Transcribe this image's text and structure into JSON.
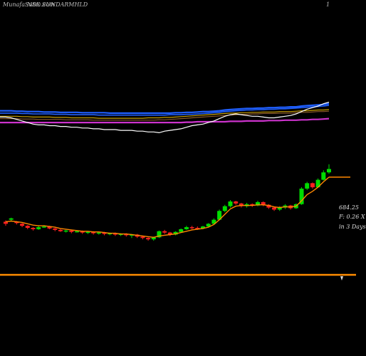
{
  "header": {
    "left_label": "MunafaSutra.com",
    "symbol_text": "NSE SUNDARMHLD",
    "page_marker": "1"
  },
  "side_labels": {
    "price": "684.25",
    "change": "F: 0.26  X",
    "period": "in 3 Days"
  },
  "colors": {
    "background": "#000000",
    "up_candle": "#00dd00",
    "down_candle": "#ff2020",
    "ema_price": "#ff8800",
    "ma_blue": "#1f5fff",
    "ma_purple": "#cc33cc",
    "ma_white": "#ffffff",
    "ma_gold": "#c8a000",
    "baseline": "#ff8c00"
  },
  "chart_data": {
    "type": "candlestick",
    "title": "",
    "x_count": 60,
    "candles": [
      {
        "o": 0.9,
        "c": 0.6,
        "h": 1.1,
        "l": 0.3
      },
      {
        "o": 1.2,
        "c": 1.4,
        "h": 1.5,
        "l": 1.0
      },
      {
        "o": 0.9,
        "c": 0.7,
        "h": 1.0,
        "l": 0.5
      },
      {
        "o": 0.6,
        "c": 0.3,
        "h": 0.7,
        "l": 0.1
      },
      {
        "o": 0.3,
        "c": 0.0,
        "h": 0.4,
        "l": -0.2
      },
      {
        "o": 0.0,
        "c": -0.2,
        "h": 0.1,
        "l": -0.4
      },
      {
        "o": -0.2,
        "c": 0.1,
        "h": 0.3,
        "l": -0.3
      },
      {
        "o": 0.1,
        "c": 0.2,
        "h": 0.4,
        "l": 0.0
      },
      {
        "o": 0.2,
        "c": -0.1,
        "h": 0.3,
        "l": -0.2
      },
      {
        "o": -0.1,
        "c": -0.3,
        "h": 0.0,
        "l": -0.5
      },
      {
        "o": -0.3,
        "c": -0.5,
        "h": -0.2,
        "l": -0.6
      },
      {
        "o": -0.5,
        "c": -0.4,
        "h": -0.3,
        "l": -0.7
      },
      {
        "o": -0.4,
        "c": -0.6,
        "h": -0.3,
        "l": -0.8
      },
      {
        "o": -0.6,
        "c": -0.5,
        "h": -0.4,
        "l": -0.7
      },
      {
        "o": -0.5,
        "c": -0.7,
        "h": -0.4,
        "l": -0.9
      },
      {
        "o": -0.7,
        "c": -0.6,
        "h": -0.5,
        "l": -0.9
      },
      {
        "o": -0.6,
        "c": -0.8,
        "h": -0.5,
        "l": -1.0
      },
      {
        "o": -0.8,
        "c": -0.7,
        "h": -0.6,
        "l": -1.0
      },
      {
        "o": -0.7,
        "c": -0.9,
        "h": -0.6,
        "l": -1.1
      },
      {
        "o": -0.9,
        "c": -0.8,
        "h": -0.7,
        "l": -1.1
      },
      {
        "o": -0.8,
        "c": -1.0,
        "h": -0.7,
        "l": -1.2
      },
      {
        "o": -1.0,
        "c": -0.9,
        "h": -0.8,
        "l": -1.2
      },
      {
        "o": -0.9,
        "c": -1.1,
        "h": -0.8,
        "l": -1.3
      },
      {
        "o": -1.1,
        "c": -1.0,
        "h": -0.9,
        "l": -1.5
      },
      {
        "o": -1.0,
        "c": -1.3,
        "h": -0.9,
        "l": -1.5
      },
      {
        "o": -1.3,
        "c": -1.5,
        "h": -1.2,
        "l": -1.7
      },
      {
        "o": -1.5,
        "c": -1.7,
        "h": -1.4,
        "l": -1.9
      },
      {
        "o": -1.7,
        "c": -1.4,
        "h": -1.3,
        "l": -1.9
      },
      {
        "o": -1.4,
        "c": -0.5,
        "h": -0.4,
        "l": -1.5
      },
      {
        "o": -0.5,
        "c": -0.7,
        "h": -0.3,
        "l": -0.9
      },
      {
        "o": -0.7,
        "c": -1.0,
        "h": -0.6,
        "l": -1.2
      },
      {
        "o": -1.0,
        "c": -0.6,
        "h": -0.5,
        "l": -1.1
      },
      {
        "o": -0.6,
        "c": -0.2,
        "h": -0.1,
        "l": -0.7
      },
      {
        "o": -0.2,
        "c": 0.1,
        "h": 0.3,
        "l": -0.3
      },
      {
        "o": 0.1,
        "c": 0.0,
        "h": 0.3,
        "l": -0.2
      },
      {
        "o": 0.0,
        "c": -0.1,
        "h": 0.2,
        "l": -0.3
      },
      {
        "o": -0.1,
        "c": 0.2,
        "h": 0.3,
        "l": -0.2
      },
      {
        "o": 0.2,
        "c": 0.6,
        "h": 0.7,
        "l": 0.1
      },
      {
        "o": 0.6,
        "c": 1.2,
        "h": 1.4,
        "l": 0.5
      },
      {
        "o": 1.2,
        "c": 2.5,
        "h": 2.7,
        "l": 1.1
      },
      {
        "o": 2.5,
        "c": 3.2,
        "h": 3.4,
        "l": 2.3
      },
      {
        "o": 3.2,
        "c": 3.9,
        "h": 4.1,
        "l": 3.0
      },
      {
        "o": 3.9,
        "c": 3.6,
        "h": 4.0,
        "l": 3.4
      },
      {
        "o": 3.6,
        "c": 3.2,
        "h": 3.7,
        "l": 3.0
      },
      {
        "o": 3.2,
        "c": 3.5,
        "h": 3.7,
        "l": 3.0
      },
      {
        "o": 3.5,
        "c": 3.3,
        "h": 3.6,
        "l": 3.1
      },
      {
        "o": 3.3,
        "c": 3.8,
        "h": 4.0,
        "l": 3.2
      },
      {
        "o": 3.8,
        "c": 3.4,
        "h": 3.9,
        "l": 3.2
      },
      {
        "o": 3.4,
        "c": 3.0,
        "h": 3.5,
        "l": 2.8
      },
      {
        "o": 3.0,
        "c": 2.7,
        "h": 3.1,
        "l": 2.5
      },
      {
        "o": 2.7,
        "c": 3.0,
        "h": 3.2,
        "l": 2.5
      },
      {
        "o": 3.0,
        "c": 3.3,
        "h": 3.5,
        "l": 2.8
      },
      {
        "o": 3.3,
        "c": 2.9,
        "h": 3.4,
        "l": 2.7
      },
      {
        "o": 2.9,
        "c": 3.5,
        "h": 3.6,
        "l": 2.8
      },
      {
        "o": 3.5,
        "c": 5.8,
        "h": 6.0,
        "l": 3.4
      },
      {
        "o": 5.8,
        "c": 6.6,
        "h": 6.8,
        "l": 5.6
      },
      {
        "o": 6.6,
        "c": 6.0,
        "h": 6.7,
        "l": 5.8
      },
      {
        "o": 6.0,
        "c": 7.1,
        "h": 7.3,
        "l": 5.9
      },
      {
        "o": 7.1,
        "c": 8.2,
        "h": 8.5,
        "l": 7.0
      },
      {
        "o": 8.2,
        "c": 8.7,
        "h": 9.4,
        "l": 8.0
      }
    ],
    "ema_price_line": [
      0.9,
      1.0,
      0.9,
      0.8,
      0.6,
      0.4,
      0.3,
      0.3,
      0.2,
      0.1,
      -0.1,
      -0.2,
      -0.3,
      -0.4,
      -0.5,
      -0.5,
      -0.6,
      -0.6,
      -0.7,
      -0.8,
      -0.8,
      -0.9,
      -0.9,
      -1.0,
      -1.1,
      -1.2,
      -1.3,
      -1.4,
      -1.2,
      -1.1,
      -1.0,
      -0.9,
      -0.7,
      -0.5,
      -0.3,
      -0.2,
      -0.1,
      0.1,
      0.5,
      1.2,
      2.0,
      2.8,
      3.2,
      3.3,
      3.3,
      3.3,
      3.4,
      3.4,
      3.3,
      3.1,
      3.0,
      3.1,
      3.1,
      3.2,
      4.0,
      4.9,
      5.4,
      6.0,
      6.8,
      7.5
    ],
    "ema_projection": 7.5,
    "upper_panel": {
      "ma_blue_1": [
        10.4,
        10.4,
        10.35,
        10.35,
        10.3,
        10.3,
        10.3,
        10.25,
        10.25,
        10.25,
        10.2,
        10.2,
        10.2,
        10.2,
        10.15,
        10.15,
        10.15,
        10.15,
        10.15,
        10.1,
        10.1,
        10.1,
        10.1,
        10.1,
        10.1,
        10.1,
        10.1,
        10.1,
        10.1,
        10.1,
        10.1,
        10.15,
        10.15,
        10.2,
        10.2,
        10.25,
        10.3,
        10.3,
        10.35,
        10.4,
        10.5,
        10.55,
        10.6,
        10.65,
        10.7,
        10.7,
        10.75,
        10.75,
        10.8,
        10.8,
        10.85,
        10.85,
        10.9,
        10.9,
        11.0,
        11.05,
        11.1,
        11.15,
        11.2,
        11.3
      ],
      "ma_blue_2": [
        10.1,
        10.1,
        10.1,
        10.05,
        10.05,
        10.0,
        10.0,
        10.0,
        10.0,
        9.95,
        9.95,
        9.95,
        9.9,
        9.9,
        9.9,
        9.9,
        9.9,
        9.85,
        9.85,
        9.85,
        9.85,
        9.85,
        9.85,
        9.85,
        9.85,
        9.85,
        9.85,
        9.85,
        9.85,
        9.85,
        9.9,
        9.9,
        9.9,
        9.95,
        9.95,
        10.0,
        10.05,
        10.1,
        10.15,
        10.2,
        10.3,
        10.35,
        10.4,
        10.45,
        10.5,
        10.5,
        10.55,
        10.55,
        10.6,
        10.6,
        10.65,
        10.65,
        10.7,
        10.75,
        10.8,
        10.85,
        10.9,
        10.95,
        11.0,
        11.1
      ],
      "ma_gold": [
        9.7,
        9.7,
        9.7,
        9.65,
        9.65,
        9.6,
        9.6,
        9.6,
        9.6,
        9.55,
        9.55,
        9.55,
        9.5,
        9.5,
        9.5,
        9.5,
        9.5,
        9.45,
        9.45,
        9.45,
        9.45,
        9.45,
        9.45,
        9.45,
        9.45,
        9.45,
        9.5,
        9.5,
        9.5,
        9.55,
        9.55,
        9.6,
        9.65,
        9.7,
        9.75,
        9.8,
        9.85,
        9.9,
        9.95,
        10.0,
        10.05,
        10.1,
        10.1,
        10.15,
        10.15,
        10.2,
        10.2,
        10.25,
        10.25,
        10.25,
        10.3,
        10.3,
        10.3,
        10.35,
        10.4,
        10.4,
        10.45,
        10.5,
        10.5,
        10.55
      ],
      "ma_brown": [
        9.4,
        9.4,
        9.4,
        9.35,
        9.35,
        9.35,
        9.3,
        9.3,
        9.3,
        9.3,
        9.3,
        9.25,
        9.25,
        9.25,
        9.25,
        9.25,
        9.2,
        9.2,
        9.2,
        9.2,
        9.2,
        9.2,
        9.2,
        9.2,
        9.2,
        9.2,
        9.2,
        9.2,
        9.25,
        9.25,
        9.3,
        9.35,
        9.4,
        9.45,
        9.5,
        9.55,
        9.6,
        9.65,
        9.7,
        9.75,
        9.8,
        9.85,
        9.9,
        9.95,
        9.95,
        10.0,
        10.0,
        10.05,
        10.05,
        10.05,
        10.1,
        10.1,
        10.1,
        10.15,
        10.2,
        10.2,
        10.25,
        10.3,
        10.3,
        10.35
      ],
      "ma_purple": [
        8.9,
        8.9,
        8.9,
        8.9,
        8.9,
        8.9,
        8.9,
        8.9,
        8.9,
        8.9,
        8.9,
        8.9,
        8.9,
        8.9,
        8.9,
        8.9,
        8.9,
        8.9,
        8.9,
        8.9,
        8.9,
        8.9,
        8.9,
        8.9,
        8.9,
        8.9,
        8.9,
        8.9,
        8.9,
        8.9,
        8.9,
        8.9,
        8.9,
        8.95,
        8.95,
        9.0,
        9.0,
        9.0,
        9.0,
        9.0,
        9.0,
        9.05,
        9.05,
        9.05,
        9.1,
        9.1,
        9.1,
        9.1,
        9.15,
        9.15,
        9.15,
        9.2,
        9.2,
        9.2,
        9.25,
        9.25,
        9.3,
        9.3,
        9.35,
        9.4
      ],
      "ma_white": [
        9.6,
        9.5,
        9.3,
        9.1,
        8.9,
        8.7,
        8.6,
        8.6,
        8.5,
        8.5,
        8.4,
        8.4,
        8.3,
        8.3,
        8.2,
        8.2,
        8.1,
        8.1,
        8.0,
        8.0,
        8.0,
        7.9,
        7.9,
        7.9,
        7.8,
        7.8,
        7.7,
        7.7,
        7.6,
        7.8,
        7.9,
        8.0,
        8.1,
        8.3,
        8.5,
        8.6,
        8.7,
        8.9,
        9.1,
        9.4,
        9.7,
        9.9,
        10.0,
        9.9,
        9.8,
        9.7,
        9.7,
        9.6,
        9.5,
        9.5,
        9.6,
        9.7,
        9.8,
        10.0,
        10.3,
        10.6,
        10.8,
        11.0,
        11.3,
        11.5
      ]
    }
  }
}
